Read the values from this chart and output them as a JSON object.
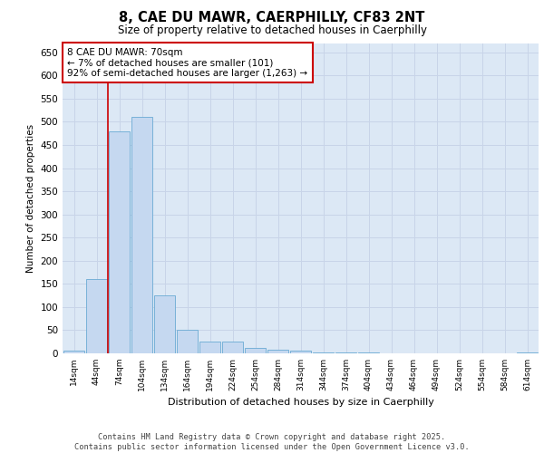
{
  "title": "8, CAE DU MAWR, CAERPHILLY, CF83 2NT",
  "subtitle": "Size of property relative to detached houses in Caerphilly",
  "xlabel": "Distribution of detached houses by size in Caerphilly",
  "ylabel": "Number of detached properties",
  "categories": [
    "14sqm",
    "44sqm",
    "74sqm",
    "104sqm",
    "134sqm",
    "164sqm",
    "194sqm",
    "224sqm",
    "254sqm",
    "284sqm",
    "314sqm",
    "344sqm",
    "374sqm",
    "404sqm",
    "434sqm",
    "464sqm",
    "494sqm",
    "524sqm",
    "554sqm",
    "584sqm",
    "614sqm"
  ],
  "values": [
    5,
    160,
    480,
    510,
    125,
    50,
    25,
    25,
    12,
    8,
    5,
    2,
    1,
    1,
    0,
    0,
    0,
    0,
    0,
    0,
    2
  ],
  "bar_color": "#c5d8f0",
  "bar_edge_color": "#6aaad4",
  "grid_color": "#c8d4e8",
  "background_color": "#dce8f5",
  "annotation_text": "8 CAE DU MAWR: 70sqm\n← 7% of detached houses are smaller (101)\n92% of semi-detached houses are larger (1,263) →",
  "annotation_box_color": "#ffffff",
  "annotation_box_edge": "#cc0000",
  "footer_text": "Contains HM Land Registry data © Crown copyright and database right 2025.\nContains public sector information licensed under the Open Government Licence v3.0.",
  "ylim": [
    0,
    670
  ],
  "yticks": [
    0,
    50,
    100,
    150,
    200,
    250,
    300,
    350,
    400,
    450,
    500,
    550,
    600,
    650
  ]
}
